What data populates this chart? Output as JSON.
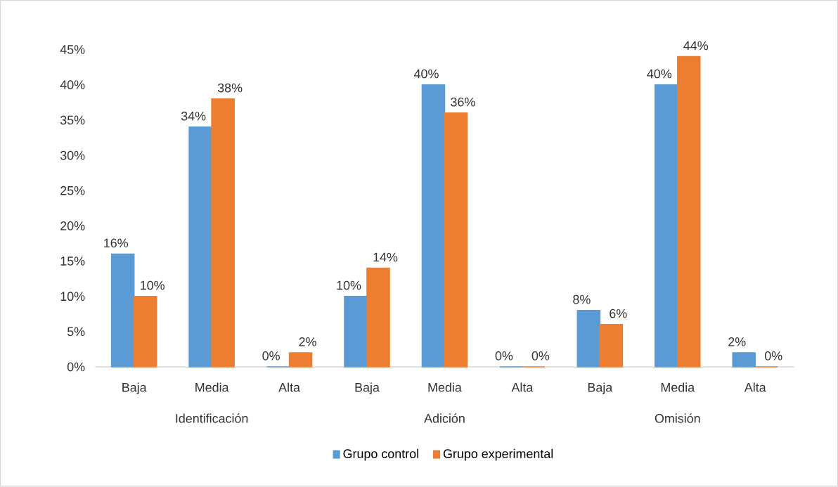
{
  "chart_data": {
    "type": "bar",
    "categories": [
      "Baja",
      "Media",
      "Alta",
      "Baja",
      "Media",
      "Alta",
      "Baja",
      "Media",
      "Alta"
    ],
    "series": [
      {
        "name": "Grupo control",
        "color": "#5b9bd5",
        "values": [
          16,
          34,
          0,
          10,
          40,
          0,
          8,
          40,
          2
        ],
        "value_labels": [
          "16%",
          "34%",
          "0%",
          "10%",
          "40%",
          "0%",
          "8%",
          "40%",
          "2%"
        ]
      },
      {
        "name": "Grupo experimental",
        "color": "#ed7d31",
        "values": [
          10,
          38,
          2,
          14,
          36,
          0,
          6,
          44,
          0
        ],
        "value_labels": [
          "10%",
          "38%",
          "2%",
          "14%",
          "36%",
          "0%",
          "6%",
          "44%",
          "0%"
        ]
      }
    ],
    "ylim": [
      0,
      45
    ],
    "yticks": [
      {
        "value": 0,
        "label": "0%"
      },
      {
        "value": 5,
        "label": "5%"
      },
      {
        "value": 10,
        "label": "10%"
      },
      {
        "value": 15,
        "label": "15%"
      },
      {
        "value": 20,
        "label": "20%"
      },
      {
        "value": 25,
        "label": "25%"
      },
      {
        "value": 30,
        "label": "30%"
      },
      {
        "value": 35,
        "label": "35%"
      },
      {
        "value": 40,
        "label": "40%"
      },
      {
        "value": 45,
        "label": "45%"
      }
    ],
    "annotations": [
      "Identificación",
      "Adición",
      "Omisión"
    ],
    "legend": "bottom"
  }
}
